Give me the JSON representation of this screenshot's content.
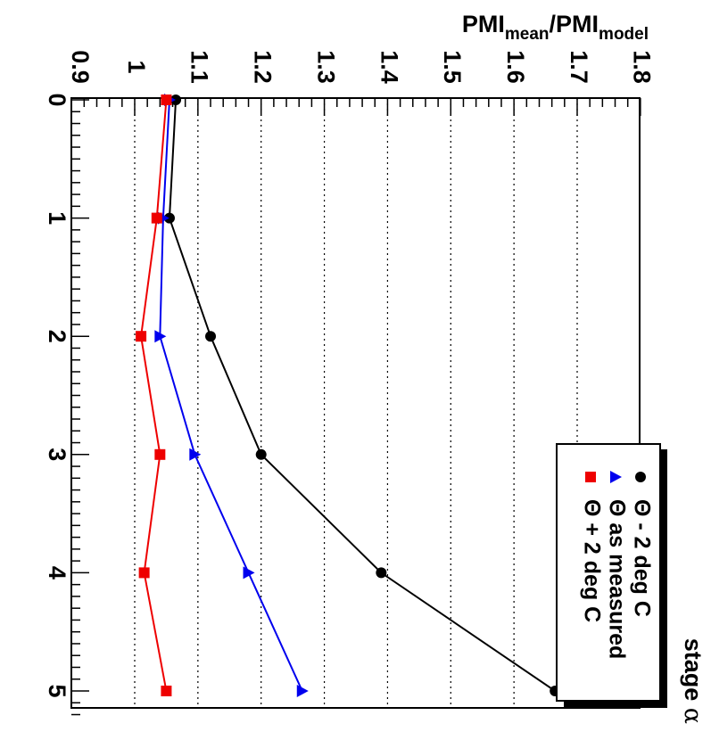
{
  "chart_data": {
    "type": "line",
    "orientation": "rotated-90-clockwise",
    "y_title": {
      "main": "PMI",
      "sub1": "mean",
      "sep": "/",
      "main2": "PMI",
      "sub2": "model"
    },
    "x_title": {
      "text": "stage ",
      "greek": "α"
    },
    "x": [
      0,
      1,
      2,
      3,
      4,
      5
    ],
    "xlim": [
      0,
      5.2
    ],
    "ylim": [
      0.9,
      1.8
    ],
    "x_tick_labels": [
      "0",
      "1",
      "2",
      "3",
      "4",
      "5"
    ],
    "y_tick_labels": [
      "0.9",
      "1",
      "1.1",
      "1.2",
      "1.3",
      "1.4",
      "1.5",
      "1.6",
      "1.7",
      "1.8"
    ],
    "grid": "dotted lines at y = 1.0 … 1.7",
    "series": [
      {
        "name": "Θ - 2 deg C",
        "marker": "circle",
        "color": "#000000",
        "values": [
          1.065,
          1.055,
          1.12,
          1.2,
          1.39,
          1.665
        ]
      },
      {
        "name": "Θ as measured",
        "marker": "triangle",
        "color": "#0000ee",
        "values": [
          1.055,
          1.045,
          1.04,
          1.095,
          1.18,
          1.265
        ]
      },
      {
        "name": "Θ + 2 deg C",
        "marker": "square",
        "color": "#ee0000",
        "values": [
          1.05,
          1.035,
          1.01,
          1.04,
          1.015,
          1.05
        ]
      }
    ],
    "legend": {
      "placement": "bottom-right"
    }
  }
}
